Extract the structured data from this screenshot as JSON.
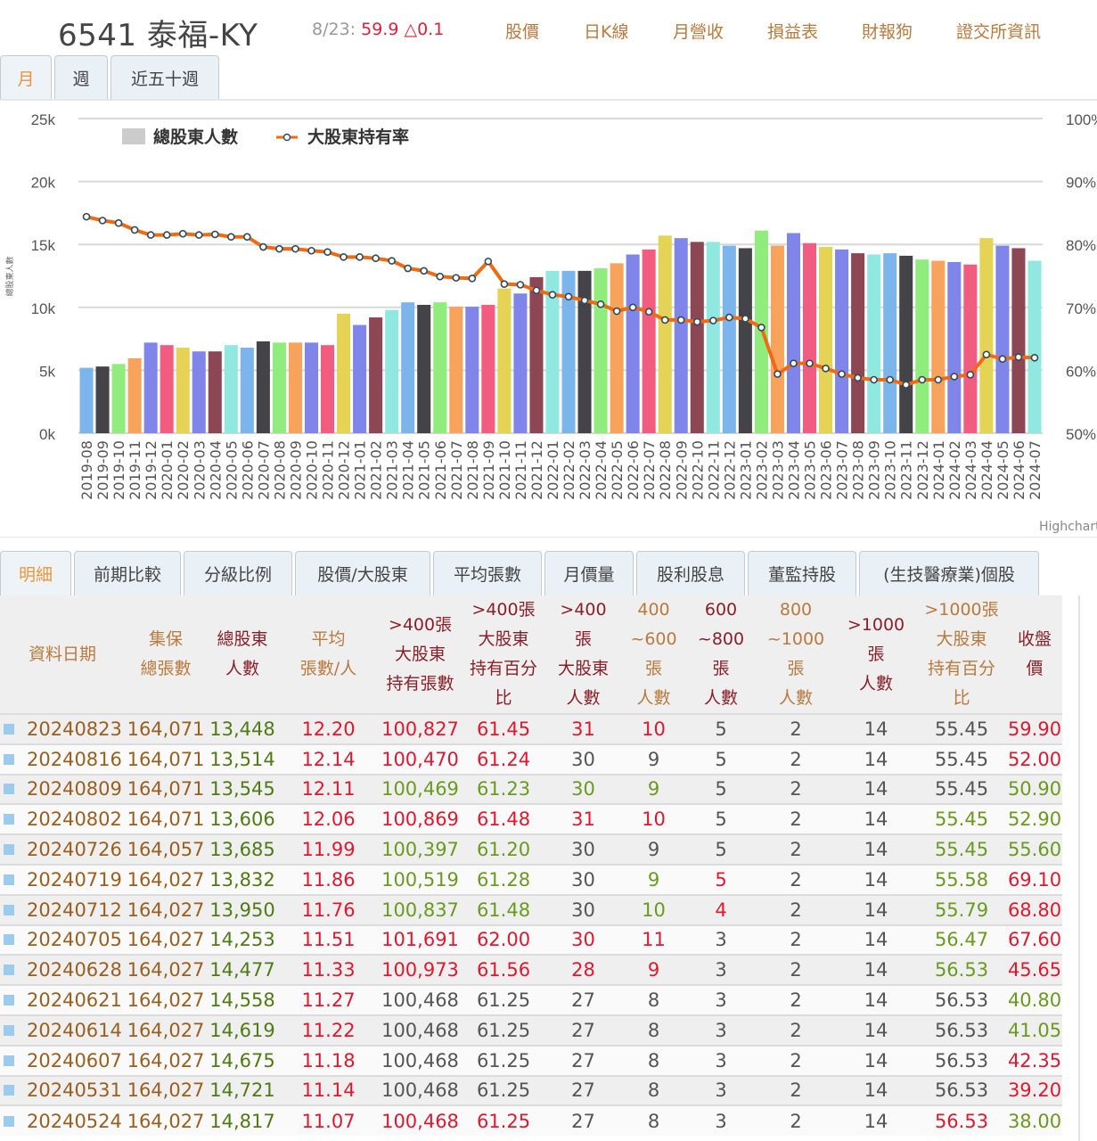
{
  "header": {
    "title": "6541 泰福-KY",
    "quote_date": "8/23:",
    "quote_price": "59.9 △0.1",
    "nav": [
      "股價",
      "日K線",
      "月營收",
      "損益表",
      "財報狗",
      "證交所資訊"
    ]
  },
  "chart_tabs": [
    {
      "label": "月",
      "active": true
    },
    {
      "label": "週",
      "active": false
    },
    {
      "label": "近五十週",
      "active": false
    }
  ],
  "colors": {
    "line": "#f06a14",
    "bars": [
      "#7cb5ec",
      "#434348",
      "#90ed7d",
      "#f7a35c",
      "#8085e9",
      "#f15c80",
      "#e4d354",
      "#8085e9",
      "#8d4653",
      "#91e8e1"
    ]
  },
  "chart_data": {
    "type": "bar+line",
    "yaxis_title": "總股東人數",
    "credit": "Highcharts",
    "legend": [
      "總股東人數",
      "大股東持有率"
    ],
    "legend_position": "top-left",
    "yleft": {
      "ticks": [
        "0k",
        "5k",
        "10k",
        "15k",
        "20k",
        "25k"
      ],
      "range": [
        0,
        25000
      ]
    },
    "yright": {
      "ticks": [
        "50%",
        "60%",
        "70%",
        "80%",
        "90%",
        "100%"
      ],
      "range": [
        50,
        100
      ]
    },
    "categories": [
      "2019-08",
      "2019-09",
      "2019-10",
      "2019-11",
      "2019-12",
      "2020-01",
      "2020-02",
      "2020-03",
      "2020-04",
      "2020-05",
      "2020-06",
      "2020-07",
      "2020-08",
      "2020-09",
      "2020-10",
      "2020-11",
      "2020-12",
      "2021-01",
      "2021-02",
      "2021-03",
      "2021-04",
      "2021-05",
      "2021-06",
      "2021-07",
      "2021-08",
      "2021-09",
      "2021-10",
      "2021-11",
      "2021-12",
      "2022-01",
      "2022-02",
      "2022-03",
      "2022-04",
      "2022-05",
      "2022-06",
      "2022-07",
      "2022-08",
      "2022-09",
      "2022-10",
      "2022-11",
      "2022-12",
      "2023-01",
      "2023-02",
      "2023-03",
      "2023-04",
      "2023-05",
      "2023-06",
      "2023-07",
      "2023-08",
      "2023-09",
      "2023-10",
      "2023-11",
      "2023-12",
      "2024-01",
      "2024-02",
      "2024-03",
      "2024-04",
      "2024-05",
      "2024-06",
      "2024-07"
    ],
    "series": [
      {
        "name": "總股東人數",
        "type": "bar",
        "values": [
          5200,
          5300,
          5500,
          5950,
          7200,
          7000,
          6800,
          6500,
          6500,
          7000,
          6800,
          7300,
          7200,
          7200,
          7200,
          7000,
          9500,
          8600,
          9200,
          9800,
          10400,
          10200,
          10400,
          10050,
          10050,
          10200,
          11500,
          11100,
          12400,
          12900,
          12900,
          12900,
          13100,
          13500,
          14200,
          14600,
          15700,
          15500,
          15200,
          15200,
          14900,
          14700,
          16100,
          14900,
          15900,
          15100,
          14800,
          14600,
          14300,
          14200,
          14300,
          14100,
          13800,
          13700,
          13600,
          13400,
          15500,
          14900,
          14700,
          13700
        ]
      },
      {
        "name": "大股東持有率",
        "type": "line",
        "values": [
          84.4,
          83.8,
          83.4,
          82.3,
          81.5,
          81.5,
          81.7,
          81.5,
          81.6,
          81.2,
          81.2,
          79.6,
          79.3,
          79.3,
          79.0,
          78.8,
          78.0,
          78.0,
          77.8,
          77.4,
          76.2,
          75.8,
          74.9,
          74.7,
          74.6,
          77.3,
          73.7,
          73.6,
          72.7,
          72.0,
          71.7,
          71.1,
          70.5,
          69.4,
          70.0,
          69.3,
          68.0,
          68.0,
          67.7,
          67.9,
          68.4,
          68.2,
          66.8,
          59.4,
          61.1,
          61.1,
          60.3,
          59.4,
          58.8,
          58.5,
          58.5,
          57.7,
          58.5,
          58.5,
          59.0,
          59.3,
          62.5,
          61.8,
          62.1,
          62.0
        ]
      }
    ]
  },
  "bottom_tabs": [
    {
      "label": "明細",
      "active": true
    },
    {
      "label": "前期比較"
    },
    {
      "label": "分級比例"
    },
    {
      "label": "股價/大股東"
    },
    {
      "label": "平均張數"
    },
    {
      "label": "月價量"
    },
    {
      "label": "股利股息"
    },
    {
      "label": "董監持股"
    },
    {
      "label": "(生技醫療業)個股"
    }
  ],
  "table": {
    "headers": [
      {
        "t": "資料日期",
        "m": 0
      },
      {
        "t": "集保\n總張數",
        "m": 0
      },
      {
        "t": "總股東\n人數",
        "m": 1
      },
      {
        "t": "平均\n張數/人",
        "m": 0
      },
      {
        "t": ">400張\n大股東\n持有張數",
        "m": 1
      },
      {
        "t": ">400張\n大股東\n持有百分\n比",
        "m": 1
      },
      {
        "t": ">400\n張\n大股東\n人數",
        "m": 1
      },
      {
        "t": "400\n~600\n張\n人數",
        "m": 0
      },
      {
        "t": "600\n~800\n張\n人數",
        "m": 1
      },
      {
        "t": "800\n~1000\n張\n人數",
        "m": 0
      },
      {
        "t": ">1000\n張\n人數",
        "m": 1
      },
      {
        "t": ">1000張\n大股東\n持有百分\n比",
        "m": 0
      },
      {
        "t": "收盤\n價",
        "m": 1
      }
    ],
    "rows": [
      {
        "date": "20240823",
        "total": "164,071",
        "holders": "13,448",
        "v": [
          "12.20",
          "100,827",
          "61.45",
          "31",
          "10",
          "5",
          "2",
          "14",
          "55.45",
          "59.90"
        ],
        "c": "rrrrrkkkkr"
      },
      {
        "date": "20240816",
        "total": "164,071",
        "holders": "13,514",
        "v": [
          "12.14",
          "100,470",
          "61.24",
          "30",
          "9",
          "5",
          "2",
          "14",
          "55.45",
          "52.00"
        ],
        "c": "rrrkkkkkkr"
      },
      {
        "date": "20240809",
        "total": "164,071",
        "holders": "13,545",
        "v": [
          "12.11",
          "100,469",
          "61.23",
          "30",
          "9",
          "5",
          "2",
          "14",
          "55.45",
          "50.90"
        ],
        "c": "rggggkkkkg"
      },
      {
        "date": "20240802",
        "total": "164,071",
        "holders": "13,606",
        "v": [
          "12.06",
          "100,869",
          "61.48",
          "31",
          "10",
          "5",
          "2",
          "14",
          "55.45",
          "52.90"
        ],
        "c": "rrrrrkkkgg"
      },
      {
        "date": "20240726",
        "total": "164,057",
        "holders": "13,685",
        "v": [
          "11.99",
          "100,397",
          "61.20",
          "30",
          "9",
          "5",
          "2",
          "14",
          "55.45",
          "55.60"
        ],
        "c": "rggkkkkkgg"
      },
      {
        "date": "20240719",
        "total": "164,027",
        "holders": "13,832",
        "v": [
          "11.86",
          "100,519",
          "61.28",
          "30",
          "9",
          "5",
          "2",
          "14",
          "55.58",
          "69.10"
        ],
        "c": "rggkgrkkgr"
      },
      {
        "date": "20240712",
        "total": "164,027",
        "holders": "13,950",
        "v": [
          "11.76",
          "100,837",
          "61.48",
          "30",
          "10",
          "4",
          "2",
          "14",
          "55.79",
          "68.80"
        ],
        "c": "rggkgrkkgr"
      },
      {
        "date": "20240705",
        "total": "164,027",
        "holders": "14,253",
        "v": [
          "11.51",
          "101,691",
          "62.00",
          "30",
          "11",
          "3",
          "2",
          "14",
          "56.47",
          "67.60"
        ],
        "c": "rrrrrkkkgr"
      },
      {
        "date": "20240628",
        "total": "164,027",
        "holders": "14,477",
        "v": [
          "11.33",
          "100,973",
          "61.56",
          "28",
          "9",
          "3",
          "2",
          "14",
          "56.53",
          "45.65"
        ],
        "c": "rrrrrkkkgr"
      },
      {
        "date": "20240621",
        "total": "164,027",
        "holders": "14,558",
        "v": [
          "11.27",
          "100,468",
          "61.25",
          "27",
          "8",
          "3",
          "2",
          "14",
          "56.53",
          "40.80"
        ],
        "c": "rkkkkkkkkg"
      },
      {
        "date": "20240614",
        "total": "164,027",
        "holders": "14,619",
        "v": [
          "11.22",
          "100,468",
          "61.25",
          "27",
          "8",
          "3",
          "2",
          "14",
          "56.53",
          "41.05"
        ],
        "c": "rkkkkkkkkg"
      },
      {
        "date": "20240607",
        "total": "164,027",
        "holders": "14,675",
        "v": [
          "11.18",
          "100,468",
          "61.25",
          "27",
          "8",
          "3",
          "2",
          "14",
          "56.53",
          "42.35"
        ],
        "c": "rkkkkkkkkr"
      },
      {
        "date": "20240531",
        "total": "164,027",
        "holders": "14,721",
        "v": [
          "11.14",
          "100,468",
          "61.25",
          "27",
          "8",
          "3",
          "2",
          "14",
          "56.53",
          "39.20"
        ],
        "c": "rkkkkkkkkr"
      },
      {
        "date": "20240524",
        "total": "164,027",
        "holders": "14,817",
        "v": [
          "11.07",
          "100,468",
          "61.25",
          "27",
          "8",
          "3",
          "2",
          "14",
          "56.53",
          "38.00"
        ],
        "c": "rrrkkkkkrg"
      }
    ]
  }
}
